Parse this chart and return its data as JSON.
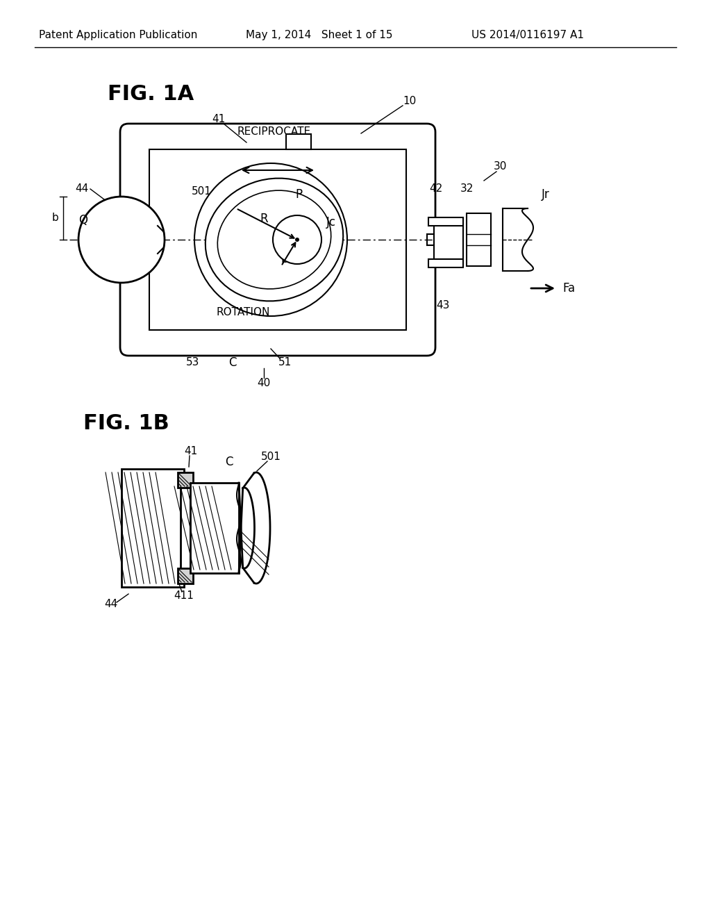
{
  "bg_color": "#ffffff",
  "line_color": "#000000",
  "header_left": "Patent Application Publication",
  "header_mid": "May 1, 2014   Sheet 1 of 15",
  "header_right": "US 2014/0116197 A1",
  "fig1a_title": "FIG. 1A",
  "fig1b_title": "FIG. 1B"
}
